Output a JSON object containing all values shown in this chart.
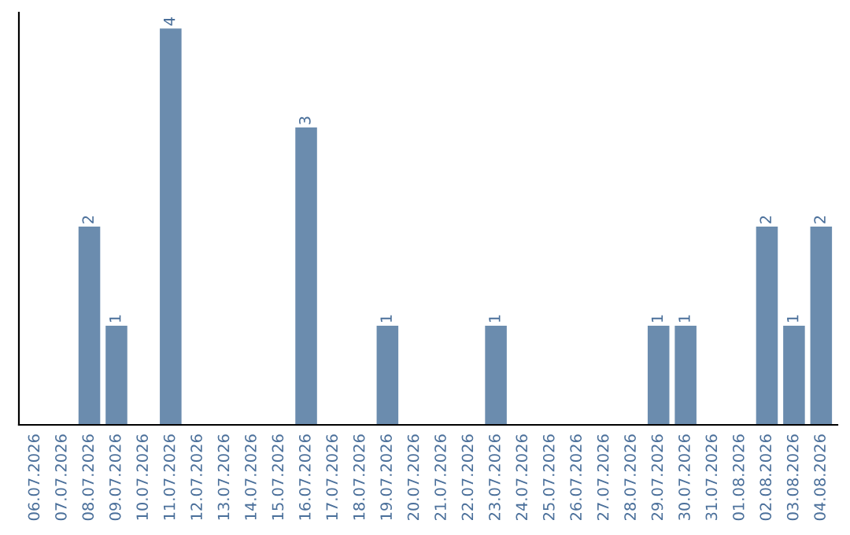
{
  "chart_data": {
    "type": "bar",
    "categories": [
      "06.07.2026",
      "07.07.2026",
      "08.07.2026",
      "09.07.2026",
      "10.07.2026",
      "11.07.2026",
      "12.07.2026",
      "13.07.2026",
      "14.07.2026",
      "15.07.2026",
      "16.07.2026",
      "17.07.2026",
      "18.07.2026",
      "19.07.2026",
      "20.07.2026",
      "21.07.2026",
      "22.07.2026",
      "23.07.2026",
      "24.07.2026",
      "25.07.2026",
      "26.07.2026",
      "27.07.2026",
      "28.07.2026",
      "29.07.2026",
      "30.07.2026",
      "31.07.2026",
      "01.08.2026",
      "02.08.2026",
      "03.08.2026",
      "04.08.2026"
    ],
    "values": [
      0,
      0,
      2,
      1,
      0,
      4,
      0,
      0,
      0,
      0,
      3,
      0,
      0,
      1,
      0,
      0,
      0,
      1,
      0,
      0,
      0,
      0,
      0,
      1,
      1,
      0,
      0,
      2,
      1,
      2
    ],
    "value_labels": [
      null,
      null,
      "2",
      "1",
      null,
      "4",
      null,
      null,
      null,
      null,
      "3",
      null,
      null,
      "1",
      null,
      null,
      null,
      "1",
      null,
      null,
      null,
      null,
      null,
      "1",
      "1",
      null,
      null,
      "2",
      "1",
      "2"
    ],
    "color": "#6b8cae",
    "grid": false,
    "legend": false
  }
}
